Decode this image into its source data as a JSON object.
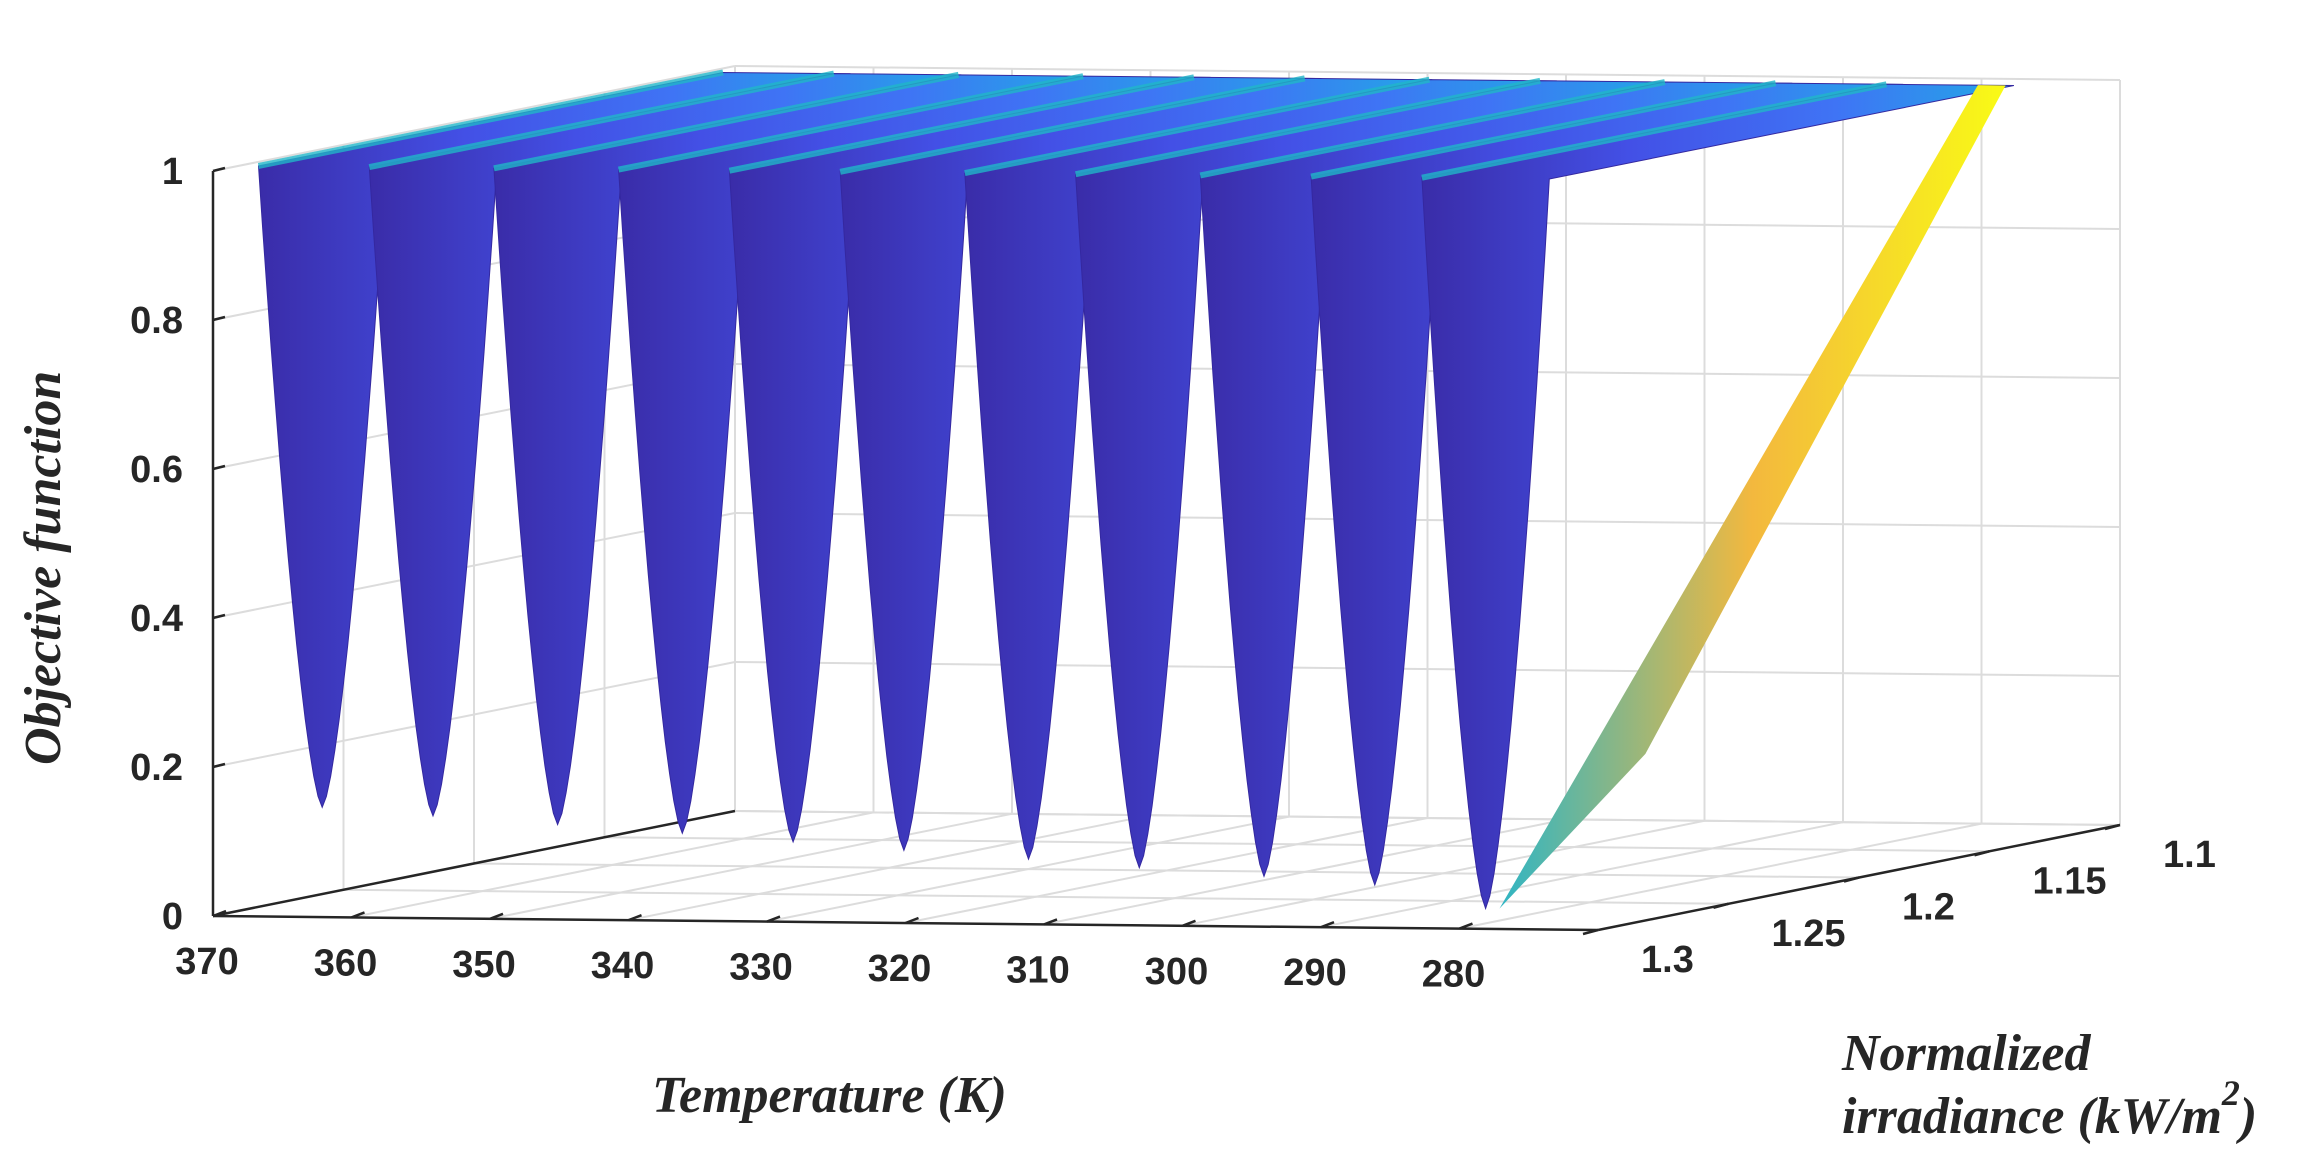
{
  "chart_data": {
    "type": "surface3d",
    "title": "",
    "xlabel": "Temperature (K)",
    "ylabel_line1": "Normalized",
    "ylabel_line2": "irradiance (kW/m",
    "ylabel_sup": "2",
    "ylabel_close": ")",
    "zlabel": "Objective function",
    "x_ticks": [
      "370",
      "360",
      "350",
      "340",
      "330",
      "320",
      "310",
      "300",
      "290",
      "280"
    ],
    "y_ticks": [
      "1.1",
      "1.15",
      "1.2",
      "1.25",
      "1.3"
    ],
    "z_ticks": [
      "0",
      "0.2",
      "0.4",
      "0.6",
      "0.8",
      "1"
    ],
    "xlim": [
      270,
      370
    ],
    "ylim": [
      1.1,
      1.3
    ],
    "zlim": [
      0,
      1
    ],
    "colormap": [
      "#3e26a8",
      "#4751f2",
      "#2f8cf0",
      "#10b5d5",
      "#47c98f",
      "#b6c83f",
      "#f9bd3b",
      "#f9fb15"
    ],
    "valleys": [
      {
        "temperature": 364,
        "min": 0.14
      },
      {
        "temperature": 356,
        "min": 0.13
      },
      {
        "temperature": 347,
        "min": 0.12
      },
      {
        "temperature": 338,
        "min": 0.11
      },
      {
        "temperature": 330,
        "min": 0.1
      },
      {
        "temperature": 322,
        "min": 0.09
      },
      {
        "temperature": 313,
        "min": 0.08
      },
      {
        "temperature": 305,
        "min": 0.07
      },
      {
        "temperature": 296,
        "min": 0.06
      },
      {
        "temperature": 288,
        "min": 0.05
      },
      {
        "temperature": 280,
        "min": 0.02
      }
    ]
  }
}
